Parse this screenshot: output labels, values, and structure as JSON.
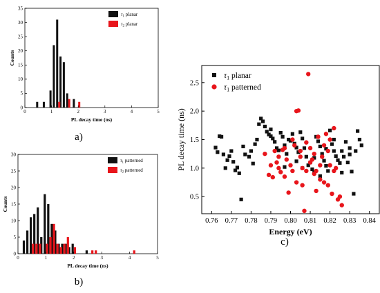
{
  "colors": {
    "black": "#111111",
    "red": "#e8151b",
    "axis": "#000000"
  },
  "chart_data": [
    {
      "id": "a",
      "caption": "a)",
      "type": "bar",
      "xlabel": "PL decay time (ns)",
      "ylabel": "Counts",
      "xlim": [
        0,
        5
      ],
      "ylim": [
        0,
        35
      ],
      "xticks": [
        0,
        1,
        2,
        3,
        4,
        5
      ],
      "yticks": [
        0,
        5,
        10,
        15,
        20,
        25,
        30,
        35
      ],
      "grid": false,
      "legend_position": "top-right",
      "series": [
        {
          "name": "τ1 planar",
          "legend_main": "τ",
          "legend_sub": "1",
          "legend_rest": " planar",
          "color": "black",
          "x": [
            0.5,
            0.75,
            1.0,
            1.125,
            1.25,
            1.375,
            1.5,
            1.625,
            1.875
          ],
          "values": [
            2,
            2,
            6,
            22,
            31,
            18,
            16,
            5,
            3
          ]
        },
        {
          "name": "τ2 planar",
          "legend_main": "τ",
          "legend_sub": "2",
          "legend_rest": " planar",
          "color": "red",
          "x": [
            1.25,
            1.625,
            2.0
          ],
          "values": [
            2,
            3,
            2
          ]
        }
      ]
    },
    {
      "id": "b",
      "caption": "b)",
      "type": "bar",
      "xlabel": "PL decay time (ns)",
      "ylabel": "Counts",
      "xlim": [
        0,
        5
      ],
      "ylim": [
        0,
        30
      ],
      "xticks": [
        0,
        1,
        2,
        3,
        4,
        5
      ],
      "yticks": [
        0,
        5,
        10,
        15,
        20,
        25,
        30
      ],
      "grid": false,
      "legend_position": "top-right",
      "series": [
        {
          "name": "τ1 patterned",
          "legend_main": "τ",
          "legend_sub": "1",
          "legend_rest": " patterned",
          "color": "black",
          "x": [
            0.25,
            0.375,
            0.5,
            0.625,
            0.75,
            0.875,
            1.0,
            1.125,
            1.25,
            1.375,
            1.5,
            1.625,
            1.75,
            1.875,
            2.0,
            2.5
          ],
          "values": [
            4,
            7,
            11,
            12,
            14,
            5,
            18,
            15,
            9,
            7,
            3,
            3,
            3,
            2,
            3,
            1
          ]
        },
        {
          "name": "τ2 patterned",
          "legend_main": "τ",
          "legend_sub": "2",
          "legend_rest": " patterned",
          "color": "red",
          "x": [
            0.5,
            0.625,
            0.75,
            1.0,
            1.125,
            1.25,
            1.375,
            1.5,
            1.625,
            1.75,
            2.0,
            2.625,
            2.75,
            4.125
          ],
          "values": [
            3,
            3,
            3,
            3,
            5,
            9,
            3,
            2,
            3,
            5,
            2,
            1,
            1,
            1
          ]
        }
      ]
    },
    {
      "id": "c",
      "caption": "c)",
      "type": "scatter",
      "xlabel": "Energy (eV)",
      "ylabel": "PL decay time (ns)",
      "xlim": [
        0.755,
        0.845
      ],
      "ylim": [
        0.2,
        2.8
      ],
      "xticks": [
        0.76,
        0.77,
        0.78,
        0.79,
        0.8,
        0.81,
        0.82,
        0.83,
        0.84
      ],
      "yticks": [
        0.5,
        1.0,
        1.5,
        2.0,
        2.5
      ],
      "xtick_labels": [
        "0.76",
        "0.77",
        "0.78",
        "0.79",
        "0.80",
        "0.81",
        "0.82",
        "0.83",
        "0.84"
      ],
      "ytick_labels": [
        "0.5",
        "1.0",
        "1.5",
        "2.0",
        "2.5"
      ],
      "grid": false,
      "legend_position": "top-left",
      "series": [
        {
          "name": "τ1 planar",
          "legend_main": "τ",
          "legend_sub": "1",
          "legend_rest": " planar",
          "color": "black",
          "marker": "square",
          "points": [
            [
              0.762,
              1.36
            ],
            [
              0.763,
              1.28
            ],
            [
              0.764,
              1.56
            ],
            [
              0.765,
              1.55
            ],
            [
              0.766,
              1.24
            ],
            [
              0.767,
              1.0
            ],
            [
              0.768,
              1.14
            ],
            [
              0.769,
              1.21
            ],
            [
              0.77,
              1.3
            ],
            [
              0.771,
              1.11
            ],
            [
              0.772,
              0.96
            ],
            [
              0.773,
              1.01
            ],
            [
              0.774,
              0.91
            ],
            [
              0.775,
              0.45
            ],
            [
              0.776,
              1.38
            ],
            [
              0.777,
              1.24
            ],
            [
              0.779,
              1.2
            ],
            [
              0.78,
              1.3
            ],
            [
              0.781,
              1.08
            ],
            [
              0.782,
              1.42
            ],
            [
              0.783,
              1.5
            ],
            [
              0.784,
              1.77
            ],
            [
              0.785,
              1.87
            ],
            [
              0.786,
              1.82
            ],
            [
              0.787,
              1.73
            ],
            [
              0.788,
              1.64
            ],
            [
              0.789,
              1.59
            ],
            [
              0.79,
              1.56
            ],
            [
              0.791,
              1.52
            ],
            [
              0.792,
              1.46
            ],
            [
              0.793,
              1.35
            ],
            [
              0.794,
              1.31
            ],
            [
              0.795,
              1.62
            ],
            [
              0.796,
              1.55
            ],
            [
              0.797,
              1.4
            ],
            [
              0.798,
              1.25
            ],
            [
              0.799,
              1.5
            ],
            [
              0.8,
              1.48
            ],
            [
              0.801,
              1.6
            ],
            [
              0.802,
              1.43
            ],
            [
              0.803,
              1.36
            ],
            [
              0.804,
              1.28
            ],
            [
              0.805,
              1.63
            ],
            [
              0.806,
              1.52
            ],
            [
              0.807,
              1.35
            ],
            [
              0.808,
              1.2
            ],
            [
              0.809,
              1.05
            ],
            [
              0.81,
              1.1
            ],
            [
              0.811,
              0.98
            ],
            [
              0.812,
              0.92
            ],
            [
              0.813,
              1.55
            ],
            [
              0.814,
              1.47
            ],
            [
              0.815,
              1.38
            ],
            [
              0.816,
              1.25
            ],
            [
              0.817,
              1.13
            ],
            [
              0.818,
              1.04
            ],
            [
              0.819,
              0.95
            ],
            [
              0.82,
              1.66
            ],
            [
              0.821,
              1.42
            ],
            [
              0.822,
              1.3
            ],
            [
              0.823,
              1.21
            ],
            [
              0.824,
              1.14
            ],
            [
              0.825,
              1.09
            ],
            [
              0.826,
              1.3
            ],
            [
              0.827,
              1.2
            ],
            [
              0.828,
              1.46
            ],
            [
              0.829,
              1.1
            ],
            [
              0.83,
              1.24
            ],
            [
              0.831,
              0.94
            ],
            [
              0.832,
              0.55
            ],
            [
              0.833,
              1.3
            ],
            [
              0.834,
              1.65
            ],
            [
              0.835,
              1.5
            ],
            [
              0.836,
              1.4
            ],
            [
              0.797,
              1.02
            ],
            [
              0.806,
              1.0
            ],
            [
              0.815,
              0.86
            ],
            [
              0.822,
              1.5
            ],
            [
              0.79,
              1.68
            ],
            [
              0.812,
              1.18
            ],
            [
              0.803,
              1.12
            ],
            [
              0.826,
              0.92
            ],
            [
              0.83,
              1.35
            ],
            [
              0.818,
              1.34
            ]
          ]
        },
        {
          "name": "τ1 patterned",
          "legend_main": "τ",
          "legend_sub": "1",
          "legend_rest": " patterned",
          "color": "red",
          "marker": "circle",
          "points": [
            [
              0.787,
              1.25
            ],
            [
              0.789,
              0.88
            ],
            [
              0.79,
              1.05
            ],
            [
              0.791,
              0.84
            ],
            [
              0.792,
              1.3
            ],
            [
              0.793,
              1.1
            ],
            [
              0.794,
              1.0
            ],
            [
              0.795,
              0.93
            ],
            [
              0.796,
              1.32
            ],
            [
              0.797,
              0.85
            ],
            [
              0.798,
              1.15
            ],
            [
              0.799,
              0.57
            ],
            [
              0.8,
              1.05
            ],
            [
              0.801,
              0.95
            ],
            [
              0.802,
              1.4
            ],
            [
              0.803,
              2.0
            ],
            [
              0.804,
              2.01
            ],
            [
              0.805,
              1.2
            ],
            [
              0.806,
              1.0
            ],
            [
              0.807,
              0.25
            ],
            [
              0.808,
              0.95
            ],
            [
              0.809,
              2.65
            ],
            [
              0.81,
              1.35
            ],
            [
              0.811,
              1.15
            ],
            [
              0.812,
              0.9
            ],
            [
              0.813,
              0.6
            ],
            [
              0.814,
              1.55
            ],
            [
              0.815,
              1.05
            ],
            [
              0.816,
              1.2
            ],
            [
              0.817,
              0.75
            ],
            [
              0.818,
              1.6
            ],
            [
              0.819,
              0.7
            ],
            [
              0.82,
              1.05
            ],
            [
              0.821,
              0.55
            ],
            [
              0.822,
              1.7
            ],
            [
              0.823,
              1.0
            ],
            [
              0.824,
              0.45
            ],
            [
              0.825,
              0.5
            ],
            [
              0.826,
              0.35
            ],
            [
              0.801,
              1.5
            ],
            [
              0.806,
              0.7
            ],
            [
              0.812,
              1.25
            ],
            [
              0.819,
              1.3
            ],
            [
              0.808,
              1.45
            ],
            [
              0.815,
              0.8
            ],
            [
              0.797,
              1.35
            ],
            [
              0.803,
              0.75
            ],
            [
              0.81,
              1.1
            ],
            [
              0.817,
              1.4
            ],
            [
              0.822,
              0.95
            ],
            [
              0.794,
              1.2
            ],
            [
              0.805,
              1.3
            ],
            [
              0.813,
              0.95
            ],
            [
              0.82,
              1.5
            ]
          ]
        }
      ]
    }
  ]
}
